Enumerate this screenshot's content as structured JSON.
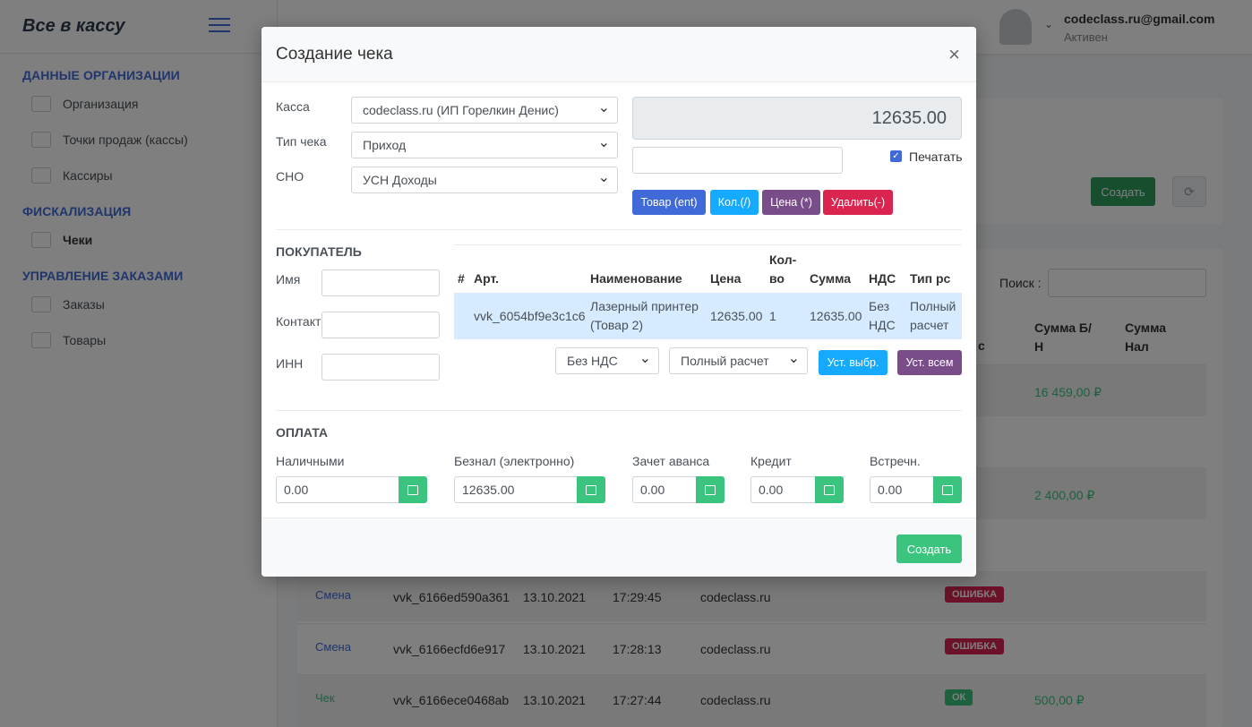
{
  "app": {
    "brand": "Все в кассу"
  },
  "user": {
    "email": "codeclass.ru@gmail.com",
    "status": "Активен"
  },
  "sidebar": {
    "sections": [
      {
        "title": "ДАННЫЕ ОРГАНИЗАЦИИ",
        "items": [
          "Организация",
          "Точки продаж (кассы)",
          "Кассиры"
        ]
      },
      {
        "title": "ФИСКАЛИЗАЦИЯ",
        "items": [
          "Чеки"
        ]
      },
      {
        "title": "УПРАВЛЕНИЕ ЗАКАЗАМИ",
        "items": [
          "Заказы",
          "Товары"
        ]
      }
    ]
  },
  "background": {
    "create_button": "Создать",
    "search_label": "Поиск :",
    "col_status": "с",
    "col_sum_bn": "Сумма Б/Н",
    "col_sum_nal": "Сумма Нал",
    "sum1": "16 459,00 ₽",
    "sum2": "2 400,00 ₽",
    "rows": [
      {
        "type": "Смена",
        "id": "vvk_6166ed590a361",
        "date": "13.10.2021",
        "time": "17:29:45",
        "org": "codeclass.ru",
        "status": "ОШИБКА",
        "sum": ""
      },
      {
        "type": "Смена",
        "id": "vvk_6166ecfd6e917",
        "date": "13.10.2021",
        "time": "17:28:13",
        "org": "codeclass.ru",
        "status": "ОШИБКА",
        "sum": ""
      },
      {
        "type": "Чек",
        "id": "vvk_6166ece0468ab",
        "date": "13.10.2021",
        "time": "17:27:44",
        "org": "codeclass.ru",
        "status": "ОК",
        "sum": "500,00 ₽"
      }
    ]
  },
  "modal": {
    "title": "Создание чека",
    "close": "×",
    "kassa_label": "Касса",
    "kassa_value": "codeclass.ru (ИП Горелкин Денис)",
    "type_label": "Тип чека",
    "type_value": "Приход",
    "sno_label": "СНО",
    "sno_value": "УСН Доходы",
    "total": "12635.00",
    "print_label": "Печатать",
    "btn_product": "Товар (ent)",
    "btn_qty": "Кол.(/)",
    "btn_price": "Цена (*)",
    "btn_delete": "Удалить(-)",
    "buyer_title": "ПОКУПАТЕЛЬ",
    "name_label": "Имя",
    "contact_label": "Контакт",
    "inn_label": "ИНН",
    "table_headers": {
      "num": "#",
      "art": "Арт.",
      "name": "Наименование",
      "price": "Цена",
      "qty1": "Кол-",
      "qty2": "во",
      "sum": "Сумма",
      "nds": "НДС",
      "type": "Тип рс"
    },
    "item": {
      "art": "vvk_6054bf9e3c1c6",
      "name1": "Лазерный принтер",
      "name2": "(Товар 2)",
      "price": "12635.00",
      "qty": "1",
      "sum": "12635.00",
      "nds1": "Без",
      "nds2": "НДС",
      "type1": "Полный",
      "type2": "расчет"
    },
    "nds_select": "Без НДС",
    "calc_select": "Полный расчет",
    "btn_set_selected": "Уст. выбр.",
    "btn_set_all": "Уст. всем",
    "pay_title": "ОПЛАТА",
    "pay": [
      {
        "label": "Наличными",
        "value": "0.00"
      },
      {
        "label": "Безнал (электронно)",
        "value": "12635.00"
      },
      {
        "label": "Зачет аванса",
        "value": "0.00"
      },
      {
        "label": "Кредит",
        "value": "0.00"
      },
      {
        "label": "Встречн.",
        "value": "0.00"
      }
    ],
    "create_button": "Создать"
  }
}
